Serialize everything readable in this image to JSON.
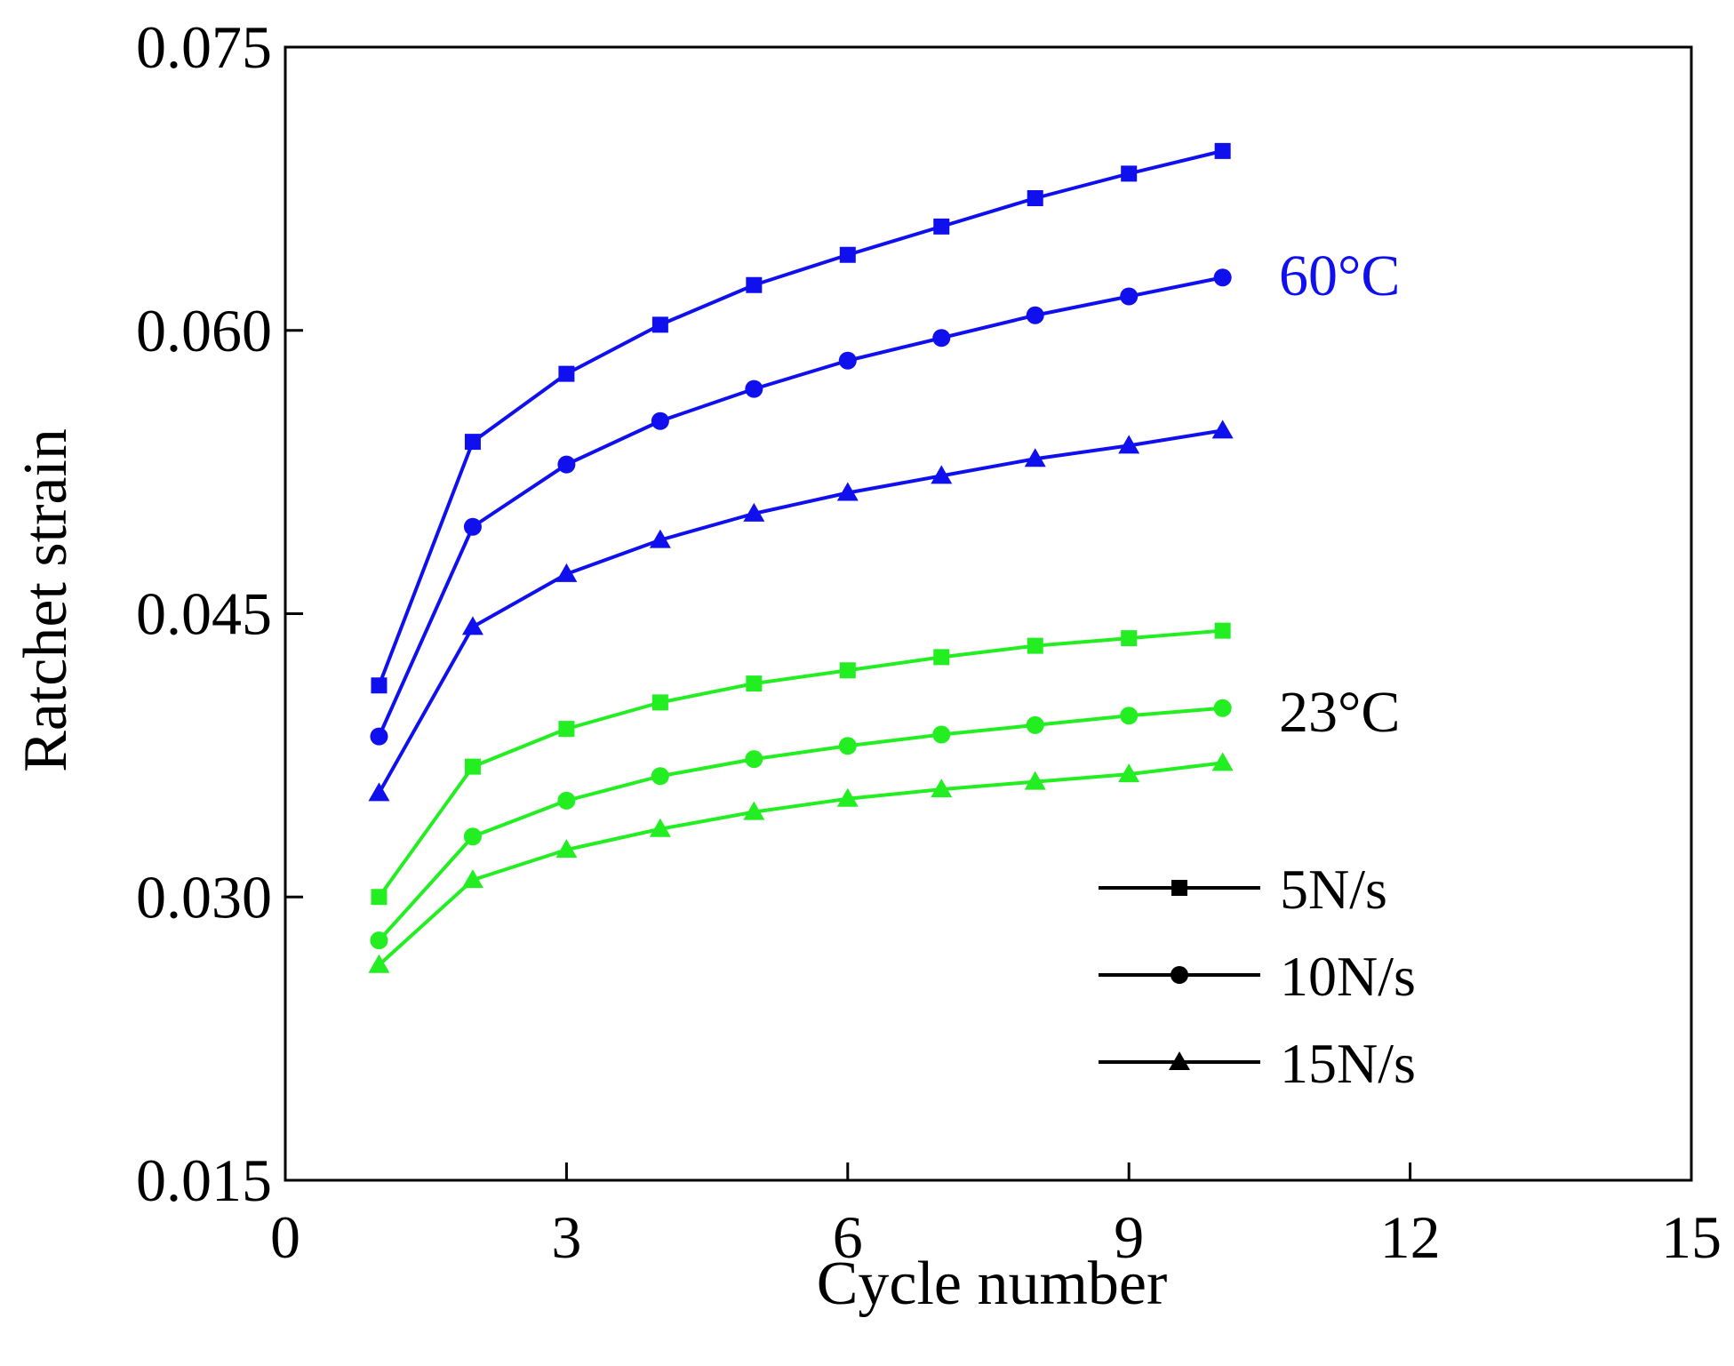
{
  "chart_data": {
    "type": "line",
    "title": "",
    "xlabel": "Cycle number",
    "ylabel": "Ratchet strain",
    "xlim": [
      0,
      15
    ],
    "ylim": [
      0.015,
      0.075
    ],
    "xticks": [
      0,
      3,
      6,
      9,
      12,
      15
    ],
    "yticks": [
      0.015,
      0.03,
      0.045,
      0.06,
      0.075
    ],
    "xtick_labels": [
      "0",
      "3",
      "6",
      "9",
      "12",
      "15"
    ],
    "ytick_labels": [
      "0.015",
      "0.030",
      "0.045",
      "0.060",
      "0.075"
    ],
    "grid": false,
    "x": [
      1,
      2,
      3,
      4,
      5,
      6,
      7,
      8,
      9,
      10
    ],
    "series": [
      {
        "name": "5N/s 60°C",
        "group": "60°C",
        "marker": "square",
        "color": "#1010ee",
        "values": [
          0.0412,
          0.0541,
          0.0577,
          0.0603,
          0.0624,
          0.064,
          0.0655,
          0.067,
          0.0683,
          0.0695
        ]
      },
      {
        "name": "10N/s 60°C",
        "group": "60°C",
        "marker": "circle",
        "color": "#1010ee",
        "values": [
          0.0385,
          0.0496,
          0.0529,
          0.0552,
          0.0569,
          0.0584,
          0.0596,
          0.0608,
          0.0618,
          0.0628
        ]
      },
      {
        "name": "15N/s 60°C",
        "group": "60°C",
        "marker": "triangle",
        "color": "#1010ee",
        "values": [
          0.0355,
          0.0443,
          0.0471,
          0.0489,
          0.0503,
          0.0514,
          0.0523,
          0.0532,
          0.0539,
          0.0547
        ]
      },
      {
        "name": "5N/s 23°C",
        "group": "23°C",
        "marker": "square",
        "color": "#22ee22",
        "values": [
          0.03,
          0.0369,
          0.0389,
          0.0403,
          0.0413,
          0.042,
          0.0427,
          0.0433,
          0.0437,
          0.0441
        ]
      },
      {
        "name": "10N/s 23°C",
        "group": "23°C",
        "marker": "circle",
        "color": "#22ee22",
        "values": [
          0.0277,
          0.0332,
          0.0351,
          0.0364,
          0.0373,
          0.038,
          0.0386,
          0.0391,
          0.0396,
          0.04
        ]
      },
      {
        "name": "15N/s 23°C",
        "group": "23°C",
        "marker": "triangle",
        "color": "#22ee22",
        "values": [
          0.0264,
          0.0309,
          0.0325,
          0.0336,
          0.0345,
          0.0352,
          0.0357,
          0.0361,
          0.0365,
          0.0371
        ]
      }
    ],
    "annotations": [
      {
        "text": "60°C",
        "color": "#1010ee",
        "anchor_x": 10.6,
        "anchor_y": 0.063
      },
      {
        "text": "23°C",
        "color": "#000000",
        "anchor_x": 10.6,
        "anchor_y": 0.0399
      }
    ],
    "legend": {
      "placement": "bottom-right",
      "entries": [
        {
          "label": "5N/s",
          "marker": "square"
        },
        {
          "label": "10N/s",
          "marker": "circle"
        },
        {
          "label": "15N/s",
          "marker": "triangle"
        }
      ]
    }
  }
}
